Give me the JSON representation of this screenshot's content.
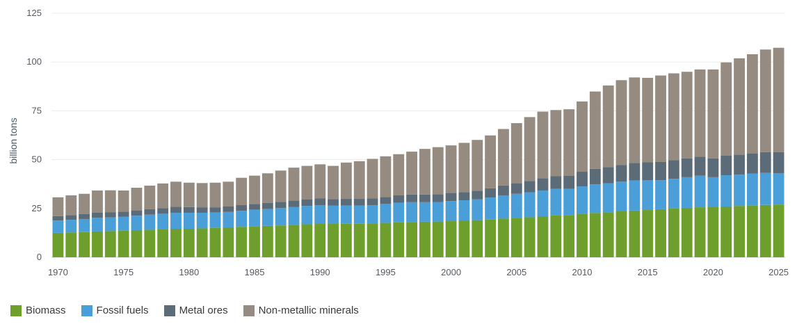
{
  "chart_data": {
    "type": "bar",
    "stacked": true,
    "xlabel": "",
    "ylabel": "billion tons",
    "ylim": [
      0,
      125
    ],
    "y_ticks": [
      0,
      25,
      50,
      75,
      100,
      125
    ],
    "x_tick_labels": [
      "1970",
      "1975",
      "1980",
      "1985",
      "1990",
      "1995",
      "2000",
      "2005",
      "2010",
      "2015",
      "2020",
      "2025"
    ],
    "grid": true,
    "legend_position": "bottom-left",
    "categories": [
      1970,
      1971,
      1972,
      1973,
      1974,
      1975,
      1976,
      1977,
      1978,
      1979,
      1980,
      1981,
      1982,
      1983,
      1984,
      1985,
      1986,
      1987,
      1988,
      1989,
      1990,
      1991,
      1992,
      1993,
      1994,
      1995,
      1996,
      1997,
      1998,
      1999,
      2000,
      2001,
      2002,
      2003,
      2004,
      2005,
      2006,
      2007,
      2008,
      2009,
      2010,
      2011,
      2012,
      2013,
      2014,
      2015,
      2016,
      2017,
      2018,
      2019,
      2020,
      2021,
      2022,
      2023,
      2024,
      2025
    ],
    "series": [
      {
        "name": "Biomass",
        "color": "#6e9f2c",
        "values": [
          12.5,
          12.7,
          12.9,
          13.2,
          13.4,
          13.6,
          13.9,
          14.1,
          14.4,
          14.6,
          14.6,
          14.8,
          15.0,
          15.3,
          15.6,
          15.9,
          16.1,
          16.3,
          16.4,
          16.9,
          17.1,
          17.1,
          17.2,
          17.2,
          17.3,
          17.6,
          17.9,
          18.1,
          18.2,
          18.3,
          18.5,
          18.7,
          19.0,
          19.3,
          19.8,
          20.1,
          20.5,
          21.0,
          21.4,
          21.6,
          22.1,
          22.7,
          23.1,
          23.5,
          23.9,
          24.2,
          24.6,
          25.0,
          25.3,
          25.6,
          25.8,
          26.0,
          26.3,
          26.6,
          26.8,
          27.0
        ]
      },
      {
        "name": "Fossil fuels",
        "color": "#4a9fd9",
        "values": [
          6.3,
          6.5,
          6.7,
          7.0,
          7.0,
          7.1,
          7.4,
          7.7,
          7.9,
          8.2,
          8.2,
          8.0,
          7.9,
          7.9,
          8.2,
          8.4,
          8.6,
          8.9,
          9.3,
          9.4,
          9.5,
          9.3,
          9.3,
          9.3,
          9.4,
          9.7,
          10.0,
          10.1,
          10.0,
          10.0,
          10.3,
          10.5,
          10.7,
          11.3,
          11.9,
          12.4,
          12.8,
          13.2,
          13.6,
          13.5,
          14.2,
          14.6,
          14.8,
          15.2,
          15.4,
          15.2,
          14.9,
          15.2,
          15.7,
          16.2,
          15.2,
          16.0,
          16.0,
          16.2,
          16.4,
          16.1
        ]
      },
      {
        "name": "Metal ores",
        "color": "#5c6b78",
        "values": [
          2.3,
          2.4,
          2.5,
          2.6,
          2.7,
          2.6,
          2.7,
          2.8,
          2.9,
          3.0,
          2.9,
          2.8,
          2.7,
          2.8,
          2.9,
          3.0,
          3.1,
          3.2,
          3.3,
          3.4,
          3.5,
          3.4,
          3.4,
          3.4,
          3.5,
          3.6,
          3.8,
          3.9,
          3.9,
          4.0,
          4.2,
          4.2,
          4.4,
          4.7,
          5.0,
          5.4,
          5.8,
          6.3,
          6.5,
          6.7,
          7.5,
          8.0,
          8.3,
          8.6,
          9.0,
          9.2,
          9.3,
          9.5,
          9.6,
          9.7,
          9.6,
          10.0,
          10.2,
          10.4,
          10.6,
          10.8
        ]
      },
      {
        "name": "Non-metallic minerals",
        "color": "#958b80",
        "values": [
          9.6,
          10.1,
          10.4,
          11.4,
          11.2,
          10.9,
          11.6,
          12.1,
          12.6,
          12.9,
          12.5,
          12.4,
          12.6,
          12.7,
          14.0,
          14.5,
          15.2,
          16.0,
          16.9,
          17.1,
          17.5,
          17.0,
          18.6,
          19.3,
          20.2,
          20.8,
          21.1,
          22.0,
          23.4,
          24.1,
          24.3,
          25.2,
          26.0,
          27.1,
          29.0,
          30.8,
          32.7,
          34.1,
          33.9,
          34.0,
          36.0,
          39.6,
          41.8,
          43.4,
          43.8,
          43.3,
          44.3,
          44.5,
          44.4,
          44.7,
          45.6,
          47.8,
          49.4,
          50.8,
          52.6,
          53.4
        ]
      }
    ]
  }
}
